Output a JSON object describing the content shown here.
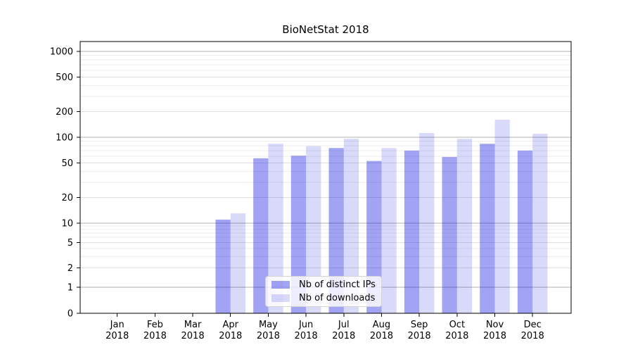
{
  "chart_data": {
    "type": "bar",
    "title": "BioNetStat 2018",
    "categories": [
      "Jan 2018",
      "Feb 2018",
      "Mar 2018",
      "Apr 2018",
      "May 2018",
      "Jun 2018",
      "Jul 2018",
      "Aug 2018",
      "Sep 2018",
      "Oct 2018",
      "Nov 2018",
      "Dec 2018"
    ],
    "x_tick_months": [
      "Jan",
      "Feb",
      "Mar",
      "Apr",
      "May",
      "Jun",
      "Jul",
      "Aug",
      "Sep",
      "Oct",
      "Nov",
      "Dec"
    ],
    "x_tick_year": "2018",
    "series": [
      {
        "name": "Nb of distinct IPs",
        "fill": "#0000dd",
        "fill_opacity": 0.36,
        "approx_color": "#a7a7f2",
        "values": [
          0,
          0,
          0,
          11,
          57,
          61,
          75,
          53,
          70,
          59,
          84,
          70
        ]
      },
      {
        "name": "Nb of downloads",
        "fill": "#0000dd",
        "fill_opacity": 0.15,
        "approx_color": "#d9d9f9",
        "values": [
          0,
          0,
          0,
          13,
          84,
          79,
          96,
          75,
          112,
          96,
          160,
          110
        ]
      }
    ],
    "y_axis": {
      "scale": "symlog",
      "ticks": [
        1000,
        500,
        200,
        100,
        50,
        20,
        10,
        5,
        2,
        1,
        0
      ],
      "ylim": [
        0,
        1300
      ]
    },
    "xlabel": "",
    "ylabel": "",
    "grid": true,
    "legend": {
      "position": "lower center",
      "entries": [
        "Nb of distinct IPs",
        "Nb of downloads"
      ]
    }
  },
  "colors": {
    "background": "#ffffff",
    "major_grid": "#b2b2b2",
    "labeled_grid": "#e0e0e0",
    "minor_grid": "#ededed",
    "spine": "#000000",
    "text": "#000000",
    "legend_border": "#d4d4d4",
    "legend_bg": "rgba(255,255,255,0.8)"
  }
}
